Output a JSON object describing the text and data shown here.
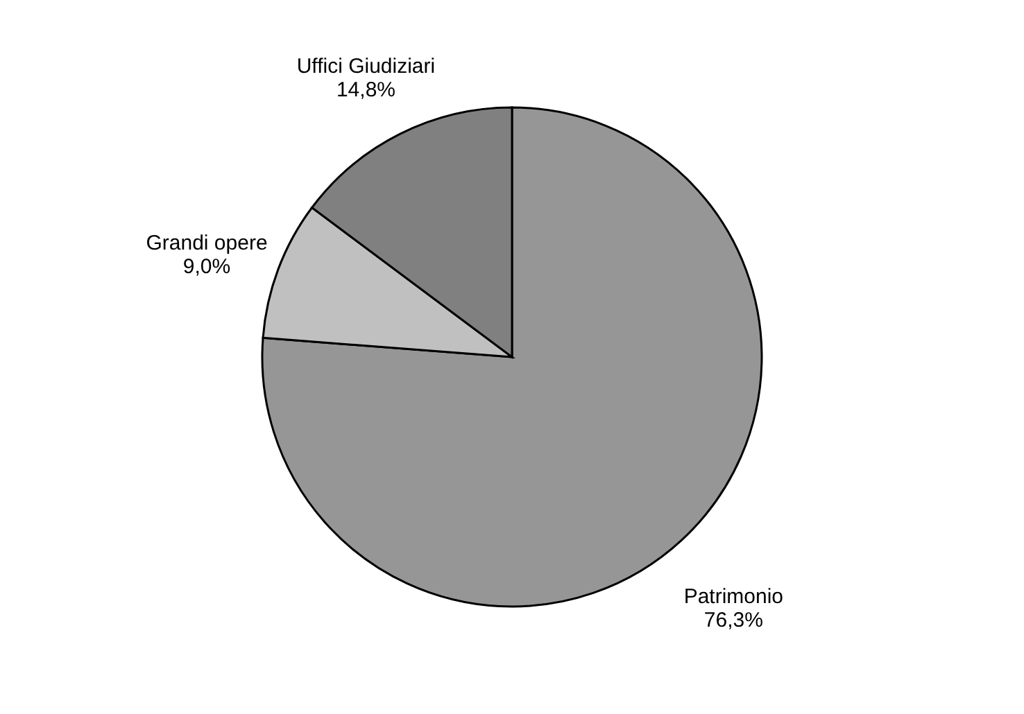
{
  "chart_data": {
    "type": "pie",
    "categories": [
      "Patrimonio",
      "Grandi opere",
      "Uffici Giudiziari"
    ],
    "values": [
      76.3,
      9.0,
      14.8
    ],
    "value_labels": [
      "76,3%",
      "9,0%",
      "14,8%"
    ],
    "colors": [
      "#969696",
      "#c0c0c0",
      "#808080"
    ],
    "legend": false
  }
}
